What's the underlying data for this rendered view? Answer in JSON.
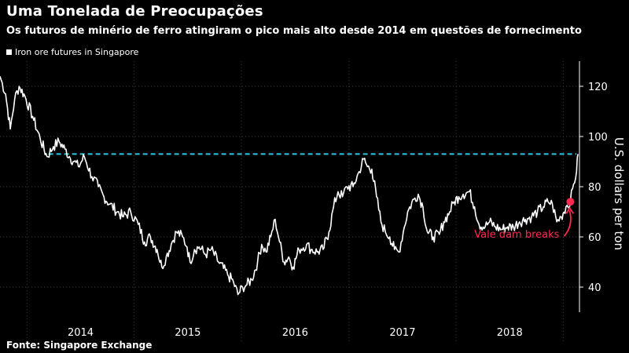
{
  "header": {
    "title": "Uma Tonelada de Preocupações",
    "subtitle": "Os futuros de minério de ferro atingiram o pico mais alto desde 2014 em questões de fornecimento"
  },
  "legend": {
    "label": "Iron ore futures in Singapore"
  },
  "footer": {
    "source_label": "Fonte:",
    "source_name": "Singapore Exchange"
  },
  "colors": {
    "line": "#ffffff",
    "reference": "#2fc7e6",
    "highlight": "#ff2a4f",
    "background": "#000000"
  },
  "chart_data": {
    "type": "line",
    "title": "Uma Tonelada de Preocupações",
    "subtitle": "Os futuros de minério de ferro atingiram o pico mais alto desde 2014 em questões de fornecimento",
    "ylabel": "U.S. dollars per ton",
    "y_axis_side": "right",
    "ylim": [
      30,
      130
    ],
    "yticks": [
      40,
      60,
      80,
      100,
      120
    ],
    "xlim": [
      "2013-10-01",
      "2019-02-25"
    ],
    "xtick_labels": [
      "2014",
      "2015",
      "2016",
      "2017",
      "2018"
    ],
    "year_boundaries": [
      "2014-01-01",
      "2015-01-01",
      "2016-01-01",
      "2017-01-01",
      "2018-01-01",
      "2019-01-01"
    ],
    "grid": true,
    "series": [
      {
        "name": "Iron ore futures in Singapore",
        "points": [
          [
            "2013-10-01",
            124
          ],
          [
            "2013-10-20",
            117
          ],
          [
            "2013-11-05",
            103
          ],
          [
            "2013-11-20",
            115
          ],
          [
            "2013-12-05",
            120
          ],
          [
            "2013-12-25",
            116
          ],
          [
            "2014-01-20",
            108
          ],
          [
            "2014-02-15",
            99
          ],
          [
            "2014-03-10",
            92
          ],
          [
            "2014-04-01",
            96
          ],
          [
            "2014-04-20",
            98
          ],
          [
            "2014-05-10",
            95
          ],
          [
            "2014-05-25",
            92
          ],
          [
            "2014-06-10",
            90
          ],
          [
            "2014-06-25",
            88
          ],
          [
            "2014-07-15",
            92
          ],
          [
            "2014-08-10",
            84
          ],
          [
            "2014-09-01",
            80
          ],
          [
            "2014-09-20",
            76
          ],
          [
            "2014-10-10",
            73
          ],
          [
            "2014-11-05",
            70
          ],
          [
            "2014-11-25",
            68
          ],
          [
            "2014-12-20",
            70
          ],
          [
            "2015-01-15",
            65
          ],
          [
            "2015-02-05",
            58
          ],
          [
            "2015-02-25",
            60
          ],
          [
            "2015-03-20",
            55
          ],
          [
            "2015-04-05",
            48
          ],
          [
            "2015-04-20",
            52
          ],
          [
            "2015-05-10",
            58
          ],
          [
            "2015-05-25",
            62
          ],
          [
            "2015-06-15",
            60
          ],
          [
            "2015-06-30",
            56
          ],
          [
            "2015-07-10",
            50
          ],
          [
            "2015-07-25",
            55
          ],
          [
            "2015-08-10",
            56
          ],
          [
            "2015-09-01",
            53
          ],
          [
            "2015-09-20",
            55
          ],
          [
            "2015-10-15",
            50
          ],
          [
            "2015-11-15",
            45
          ],
          [
            "2015-12-05",
            42
          ],
          [
            "2015-12-20",
            37
          ],
          [
            "2016-01-05",
            40
          ],
          [
            "2016-01-20",
            41
          ],
          [
            "2016-02-05",
            43
          ],
          [
            "2016-02-25",
            50
          ],
          [
            "2016-03-10",
            57
          ],
          [
            "2016-03-25",
            54
          ],
          [
            "2016-04-10",
            60
          ],
          [
            "2016-04-25",
            67
          ],
          [
            "2016-05-10",
            58
          ],
          [
            "2016-05-25",
            50
          ],
          [
            "2016-06-10",
            52
          ],
          [
            "2016-06-25",
            48
          ],
          [
            "2016-07-15",
            55
          ],
          [
            "2016-08-10",
            57
          ],
          [
            "2016-08-25",
            55
          ],
          [
            "2016-09-15",
            54
          ],
          [
            "2016-10-05",
            55
          ],
          [
            "2016-10-25",
            62
          ],
          [
            "2016-11-10",
            72
          ],
          [
            "2016-11-25",
            78
          ],
          [
            "2016-12-10",
            76
          ],
          [
            "2016-12-25",
            80
          ],
          [
            "2017-01-15",
            80
          ],
          [
            "2017-02-05",
            86
          ],
          [
            "2017-02-20",
            91
          ],
          [
            "2017-03-05",
            88
          ],
          [
            "2017-03-20",
            87
          ],
          [
            "2017-04-05",
            76
          ],
          [
            "2017-04-20",
            66
          ],
          [
            "2017-05-05",
            62
          ],
          [
            "2017-05-20",
            60
          ],
          [
            "2017-06-05",
            55
          ],
          [
            "2017-06-20",
            54
          ],
          [
            "2017-07-05",
            62
          ],
          [
            "2017-07-20",
            70
          ],
          [
            "2017-08-10",
            75
          ],
          [
            "2017-08-25",
            77
          ],
          [
            "2017-09-10",
            72
          ],
          [
            "2017-09-25",
            62
          ],
          [
            "2017-10-15",
            60
          ],
          [
            "2017-11-05",
            61
          ],
          [
            "2017-11-20",
            66
          ],
          [
            "2017-12-10",
            70
          ],
          [
            "2017-12-25",
            74
          ],
          [
            "2018-01-10",
            76
          ],
          [
            "2018-01-25",
            77
          ],
          [
            "2018-02-15",
            78
          ],
          [
            "2018-03-05",
            72
          ],
          [
            "2018-03-20",
            65
          ],
          [
            "2018-04-10",
            64
          ],
          [
            "2018-04-25",
            66
          ],
          [
            "2018-05-15",
            64
          ],
          [
            "2018-06-05",
            63
          ],
          [
            "2018-06-25",
            64
          ],
          [
            "2018-07-15",
            64
          ],
          [
            "2018-08-05",
            66
          ],
          [
            "2018-08-25",
            67
          ],
          [
            "2018-09-15",
            68
          ],
          [
            "2018-10-05",
            70
          ],
          [
            "2018-10-25",
            72
          ],
          [
            "2018-11-10",
            74
          ],
          [
            "2018-11-25",
            73
          ],
          [
            "2018-12-10",
            66
          ],
          [
            "2018-12-25",
            68
          ],
          [
            "2019-01-10",
            72
          ],
          [
            "2019-01-25",
            74
          ],
          [
            "2019-02-05",
            81
          ],
          [
            "2019-02-15",
            86
          ],
          [
            "2019-02-20",
            93
          ]
        ]
      }
    ],
    "reference_line": {
      "y": 93
    },
    "annotations": [
      {
        "text": "Vale dam breaks",
        "x": "2019-01-25",
        "y": 74
      }
    ]
  }
}
